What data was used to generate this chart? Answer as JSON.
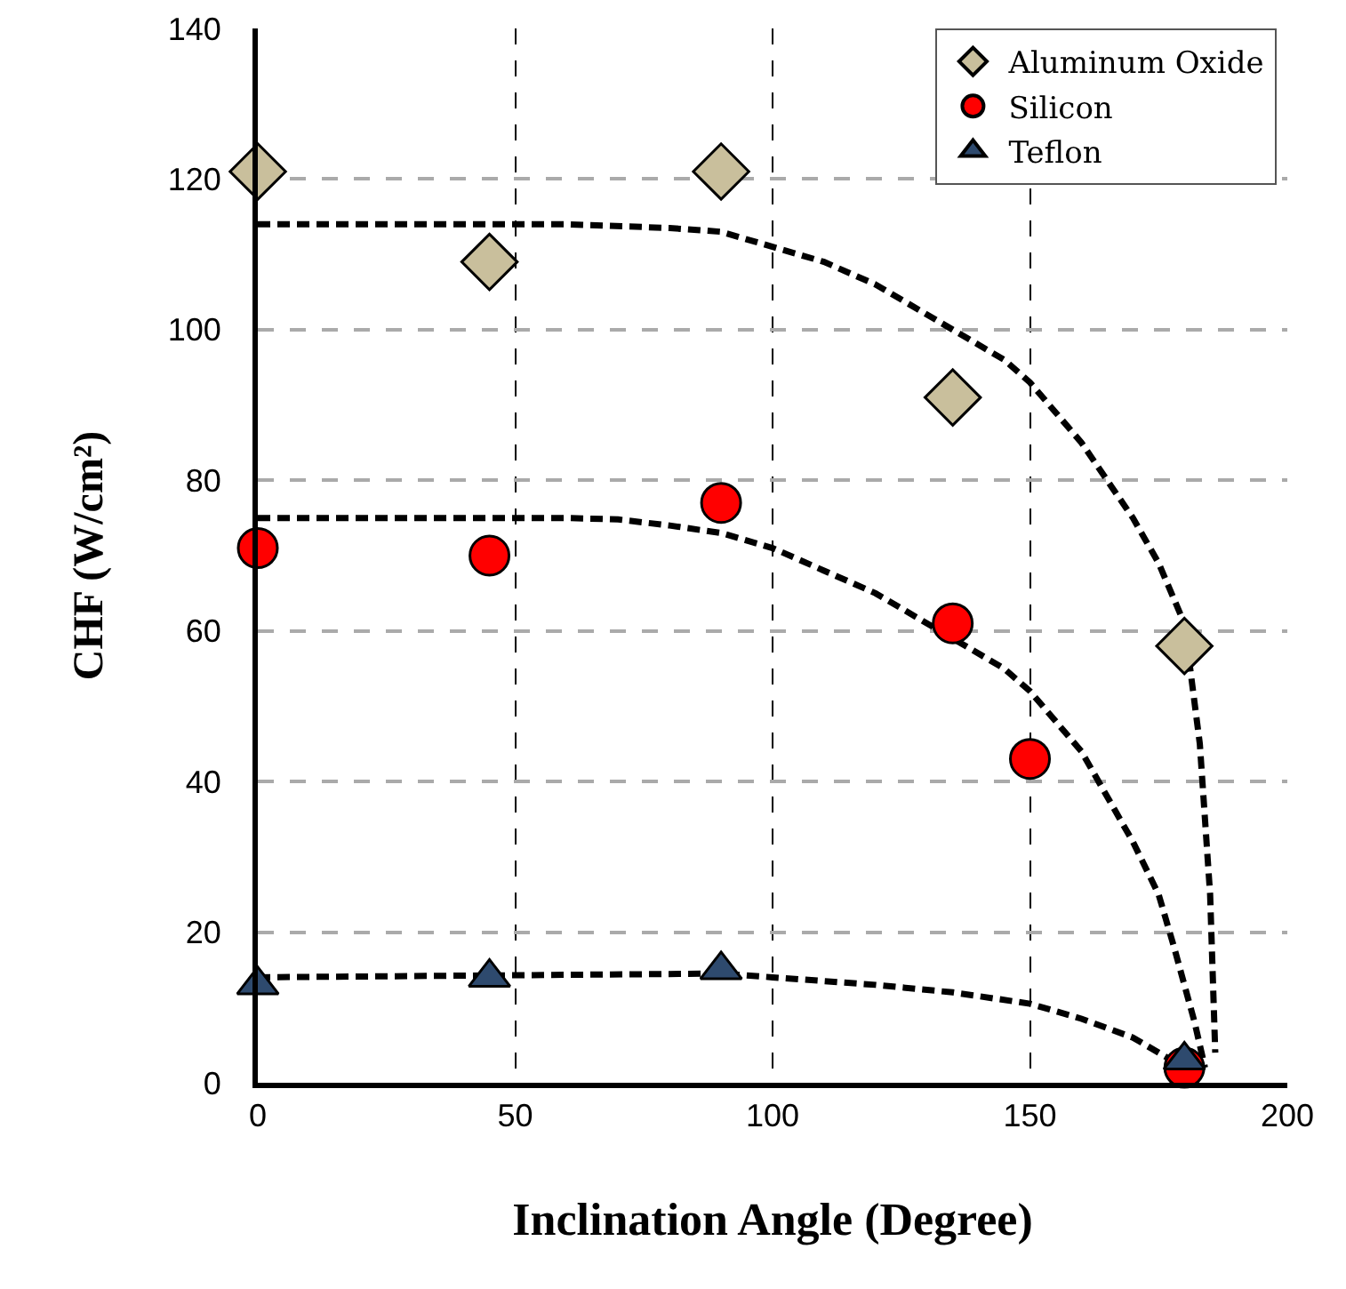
{
  "chart_data": {
    "type": "scatter",
    "xlabel": "Inclination Angle (Degree)",
    "ylabel": "CHF (W/cm²)",
    "xlim": [
      0,
      200
    ],
    "xticks": [
      0,
      50,
      100,
      150,
      200
    ],
    "ylim": [
      0,
      140
    ],
    "yticks": [
      0,
      20,
      40,
      60,
      80,
      100,
      120,
      140
    ],
    "grid": true,
    "legend": "top right",
    "series": [
      {
        "name": "Aluminum Oxide",
        "color": "#c9bf9c",
        "marker": "diamond",
        "x": [
          0,
          45,
          90,
          135,
          180
        ],
        "values": [
          121,
          109,
          121,
          91,
          58
        ]
      },
      {
        "name": "Silicon",
        "color": "#ff0000",
        "marker": "circle",
        "x": [
          0,
          45,
          90,
          135,
          150,
          180
        ],
        "values": [
          71,
          70,
          77,
          61,
          43,
          2
        ]
      },
      {
        "name": "Teflon",
        "color": "#2e4a6e",
        "marker": "triangle",
        "x": [
          0,
          45,
          90,
          180
        ],
        "values": [
          13,
          14,
          15,
          3
        ]
      },
      {
        "type": "line",
        "color": "#000000",
        "line_style": "dashed",
        "marker": "none",
        "x": [
          0,
          60,
          80,
          90,
          100,
          110,
          120,
          135,
          145,
          150,
          160,
          170,
          175,
          180,
          183,
          185,
          186
        ],
        "values": [
          114,
          114,
          113.5,
          113,
          111,
          109,
          106,
          100,
          96,
          93,
          85,
          75,
          69,
          61,
          45,
          25,
          4
        ]
      },
      {
        "type": "line",
        "color": "#000000",
        "line_style": "dashed",
        "marker": "none",
        "x": [
          0,
          60,
          70,
          80,
          90,
          100,
          110,
          120,
          135,
          145,
          150,
          160,
          170,
          175,
          178,
          182,
          184
        ],
        "values": [
          75,
          75,
          74.8,
          74,
          73,
          71,
          68,
          65,
          59,
          55,
          52,
          44,
          32,
          25,
          18,
          8,
          2
        ]
      },
      {
        "type": "line",
        "color": "#000000",
        "line_style": "dashed",
        "marker": "none",
        "x": [
          0,
          90,
          100,
          110,
          120,
          135,
          150,
          160,
          170,
          175,
          180
        ],
        "values": [
          14,
          14.5,
          14,
          13.5,
          13,
          12,
          10.5,
          8.5,
          6,
          4,
          2
        ]
      }
    ]
  }
}
